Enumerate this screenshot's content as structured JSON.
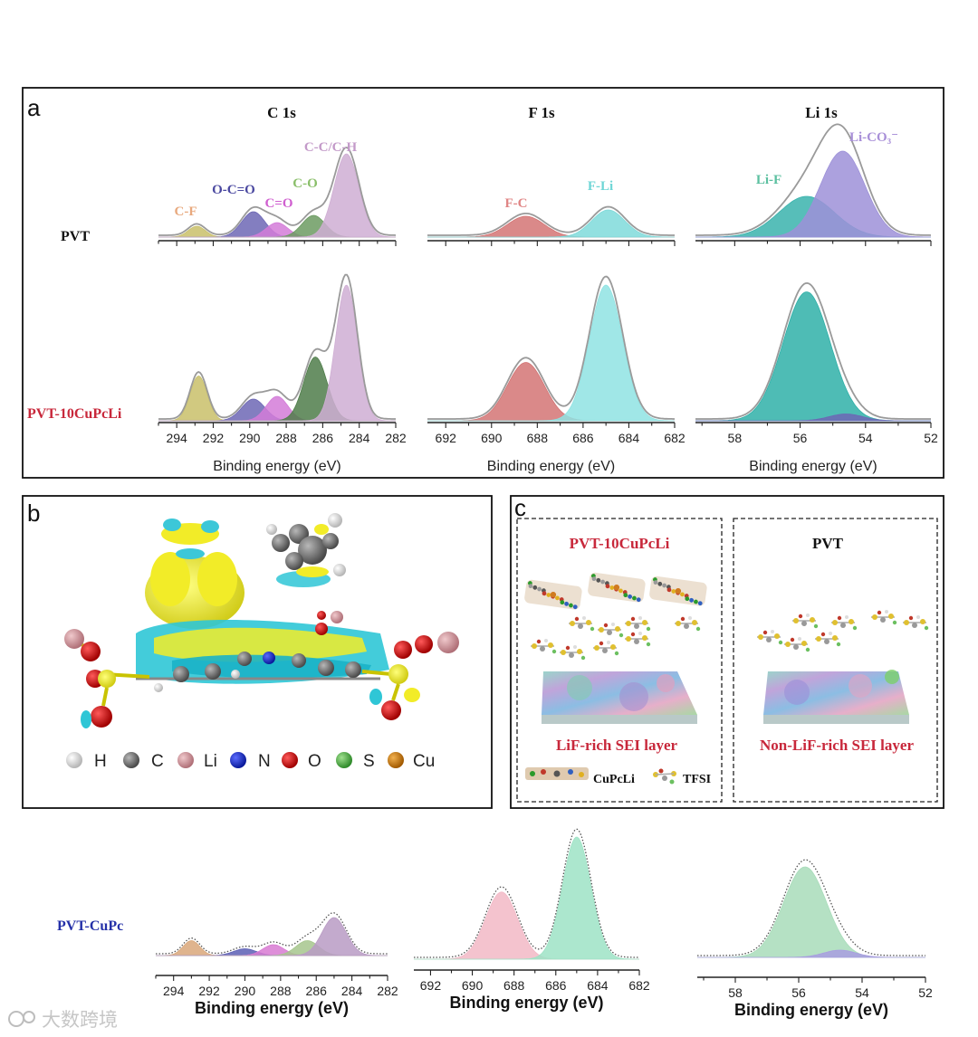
{
  "figure": {
    "panels": {
      "a": "a",
      "b": "b",
      "c": "c"
    },
    "panel_a": {
      "core_titles": [
        "C 1s",
        "F 1s",
        "Li 1s"
      ],
      "samples": [
        "PVT",
        "PVT-10CuPcLi"
      ],
      "xlabel": "Binding energy (eV)"
    },
    "panel_b": {
      "legend": [
        "H",
        "C",
        "Li",
        "N",
        "O",
        "S",
        "Cu"
      ]
    },
    "panel_c": {
      "left_title": "PVT-10CuPcLi",
      "right_title": "PVT",
      "left_layer": "LiF-rich SEI layer",
      "right_layer": "Non-LiF-rich SEI layer",
      "legend_cupcli": "CuPcLi",
      "legend_tfsi": "TFSI"
    },
    "bottom": {
      "sample": "PVT-CuPc",
      "xlabel": "Binding energy (eV)"
    },
    "watermark": "大数跨境"
  },
  "chart_data": [
    {
      "type": "area",
      "panel": "a",
      "title": "C 1s",
      "xlabel": "Binding energy (eV)",
      "xlim": [
        295,
        282
      ],
      "x_ticks": [
        294,
        292,
        290,
        288,
        286,
        284,
        282
      ],
      "peak_labels": [
        "C-F",
        "O-C=O",
        "C=O",
        "C-O",
        "C-C/C-H"
      ],
      "series": [
        {
          "name": "PVT",
          "peaks": [
            {
              "label": "C-F",
              "center": 292.9,
              "fwhm": 1.1,
              "height": 0.12,
              "color": "#c9c06a"
            },
            {
              "label": "O-C=O",
              "center": 289.8,
              "fwhm": 1.5,
              "height": 0.28,
              "color": "#6d67b5"
            },
            {
              "label": "C=O",
              "center": 288.5,
              "fwhm": 1.4,
              "height": 0.16,
              "color": "#d37bd8"
            },
            {
              "label": "C-O",
              "center": 286.5,
              "fwhm": 1.5,
              "height": 0.24,
              "color": "#6c9b62"
            },
            {
              "label": "C-C/C-H",
              "center": 284.7,
              "fwhm": 1.6,
              "height": 0.92,
              "color": "#cfaed3"
            }
          ]
        },
        {
          "name": "PVT-10CuPcLi",
          "peaks": [
            {
              "label": "C-F",
              "center": 292.8,
              "fwhm": 1.1,
              "height": 0.33,
              "color": "#c9c06a"
            },
            {
              "label": "O-C=O",
              "center": 289.8,
              "fwhm": 1.5,
              "height": 0.16,
              "color": "#6d67b5"
            },
            {
              "label": "C=O",
              "center": 288.5,
              "fwhm": 1.4,
              "height": 0.18,
              "color": "#d37bd8"
            },
            {
              "label": "C-O",
              "center": 286.4,
              "fwhm": 1.5,
              "height": 0.47,
              "color": "#4f7d4a"
            },
            {
              "label": "C-C/C-H",
              "center": 284.7,
              "fwhm": 1.4,
              "height": 1.0,
              "color": "#cfaed3"
            }
          ]
        }
      ]
    },
    {
      "type": "area",
      "panel": "a",
      "title": "F 1s",
      "xlabel": "Binding energy (eV)",
      "xlim": [
        692.8,
        682
      ],
      "x_ticks": [
        692,
        690,
        688,
        686,
        684,
        682
      ],
      "peak_labels": [
        "F-C",
        "F-Li"
      ],
      "series": [
        {
          "name": "PVT",
          "peaks": [
            {
              "label": "F-C",
              "center": 688.5,
              "fwhm": 1.9,
              "height": 0.23,
              "color": "#d47474"
            },
            {
              "label": "F-Li",
              "center": 684.9,
              "fwhm": 1.7,
              "height": 0.3,
              "color": "#7fdada"
            }
          ]
        },
        {
          "name": "PVT-10CuPcLi",
          "peaks": [
            {
              "label": "F-C",
              "center": 688.5,
              "fwhm": 1.9,
              "height": 0.43,
              "color": "#d47474"
            },
            {
              "label": "F-Li",
              "center": 685.0,
              "fwhm": 1.7,
              "height": 1.0,
              "color": "#8fe3e3"
            }
          ]
        }
      ]
    },
    {
      "type": "area",
      "panel": "a",
      "title": "Li 1s",
      "xlabel": "Binding energy (eV)",
      "xlim": [
        59.2,
        52
      ],
      "x_ticks": [
        58,
        56,
        54,
        52
      ],
      "peak_labels": [
        "Li-F",
        "Li-CO₃⁻"
      ],
      "series": [
        {
          "name": "PVT",
          "peaks": [
            {
              "label": "Li-F",
              "center": 55.8,
              "fwhm": 2.0,
              "height": 0.45,
              "color": "#3ab3ad"
            },
            {
              "label": "Li-CO₃⁻",
              "center": 54.7,
              "fwhm": 1.6,
              "height": 0.95,
              "color": "#9d91d8"
            }
          ]
        },
        {
          "name": "PVT-10CuPcLi",
          "peaks": [
            {
              "label": "Li-F",
              "center": 55.8,
              "fwhm": 1.7,
              "height": 0.95,
              "color": "#2fb0a8"
            },
            {
              "label": "Li-CO₃⁻",
              "center": 54.6,
              "fwhm": 1.2,
              "height": 0.05,
              "color": "#6d67b5"
            }
          ]
        }
      ]
    },
    {
      "type": "area",
      "panel": "bottom",
      "title": "",
      "xlabel": "Binding energy (eV)",
      "xlim": [
        295,
        282
      ],
      "x_ticks": [
        294,
        292,
        290,
        288,
        286,
        284,
        282
      ],
      "series": [
        {
          "name": "PVT-CuPc",
          "peaks": [
            {
              "center": 293.0,
              "fwhm": 1.1,
              "height": 0.22,
              "color": "#d9a77a"
            },
            {
              "center": 290.0,
              "fwhm": 1.5,
              "height": 0.1,
              "color": "#5c5fb5"
            },
            {
              "center": 288.4,
              "fwhm": 1.4,
              "height": 0.16,
              "color": "#d87ad2"
            },
            {
              "center": 286.5,
              "fwhm": 1.5,
              "height": 0.22,
              "color": "#a6c68d"
            },
            {
              "center": 285.0,
              "fwhm": 1.6,
              "height": 0.56,
              "color": "#b99bc4"
            }
          ]
        }
      ]
    },
    {
      "type": "area",
      "panel": "bottom",
      "title": "",
      "xlabel": "Binding energy (eV)",
      "xlim": [
        692.8,
        682
      ],
      "x_ticks": [
        692,
        690,
        688,
        686,
        684,
        682
      ],
      "series": [
        {
          "name": "PVT-CuPc",
          "peaks": [
            {
              "center": 688.6,
              "fwhm": 1.8,
              "height": 0.55,
              "color": "#f2b8c6"
            },
            {
              "center": 685.0,
              "fwhm": 1.6,
              "height": 1.0,
              "color": "#9ee3c6"
            }
          ]
        }
      ]
    },
    {
      "type": "area",
      "panel": "bottom",
      "title": "",
      "xlabel": "Binding energy (eV)",
      "xlim": [
        59.2,
        52
      ],
      "x_ticks": [
        58,
        56,
        54,
        52
      ],
      "series": [
        {
          "name": "PVT-CuPc",
          "peaks": [
            {
              "center": 55.8,
              "fwhm": 1.6,
              "height": 1.0,
              "color": "#a8dcba"
            },
            {
              "center": 54.7,
              "fwhm": 1.2,
              "height": 0.08,
              "color": "#a89de0"
            }
          ]
        }
      ]
    }
  ]
}
